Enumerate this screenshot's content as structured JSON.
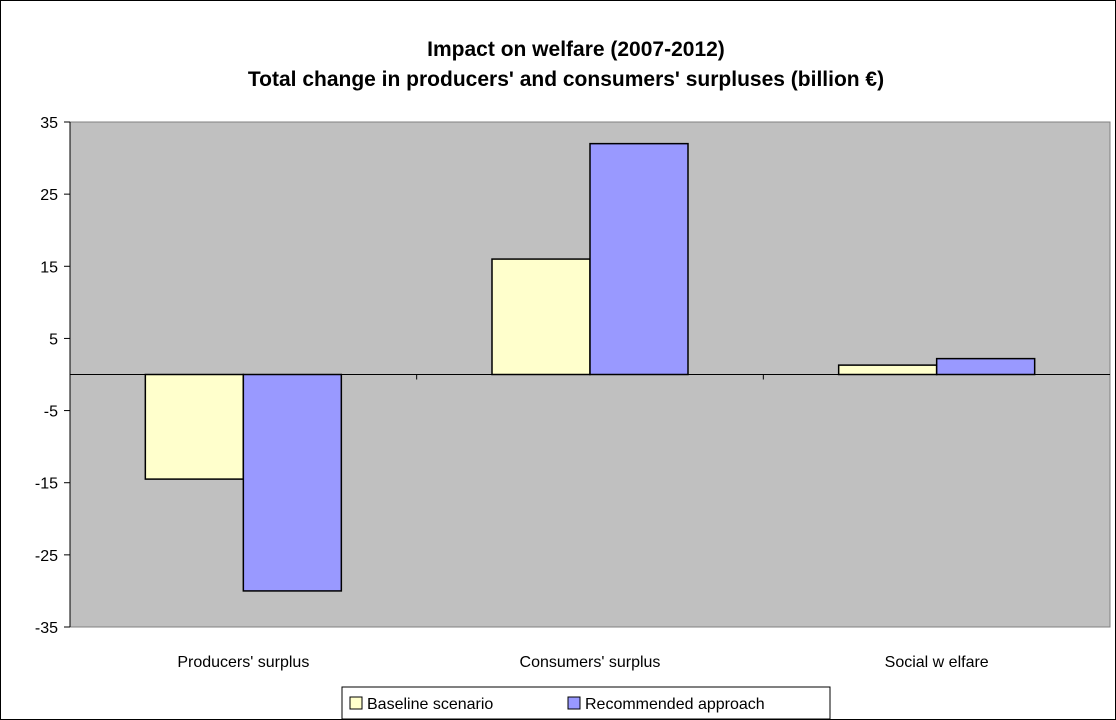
{
  "chart_data": {
    "type": "bar",
    "title": "Impact on welfare (2007-2012)",
    "subtitle": "Total change in producers' and consumers' surpluses (billion €)",
    "xlabel": "",
    "ylabel": "",
    "categories": [
      "Producers' surplus",
      "Consumers' surplus",
      "Social w elfare"
    ],
    "series": [
      {
        "name": "Baseline scenario",
        "values": [
          -14.5,
          16,
          1.3
        ],
        "color": "#ffffcc"
      },
      {
        "name": "Recommended approach",
        "values": [
          -30,
          32,
          2.2
        ],
        "color": "#9999ff"
      }
    ],
    "ylim": [
      -35,
      35
    ],
    "yticks": [
      35,
      25,
      15,
      5,
      -5,
      -15,
      -25,
      -35
    ],
    "grid": false,
    "plot_background": "#c0c0c0",
    "legend_position": "bottom"
  }
}
